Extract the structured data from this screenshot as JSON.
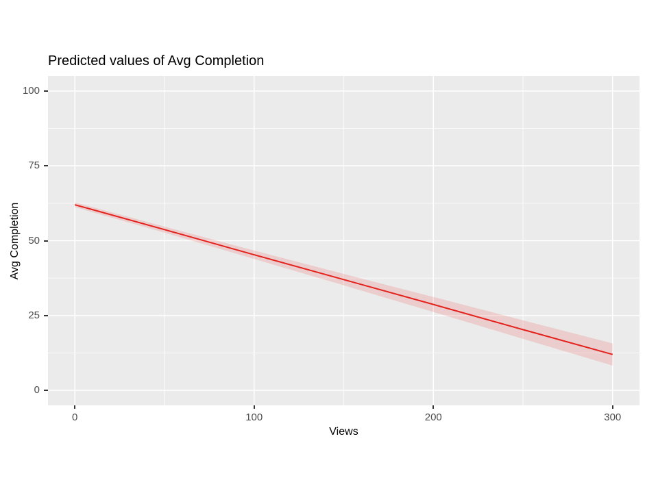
{
  "chart_data": {
    "type": "line",
    "title": "Predicted values of Avg Completion",
    "xlabel": "Views",
    "ylabel": "Avg Completion",
    "xlim": [
      0,
      300
    ],
    "ylim": [
      0,
      100
    ],
    "x_ticks": [
      0,
      100,
      200,
      300
    ],
    "x_minor_ticks": [
      50,
      150,
      250
    ],
    "y_ticks": [
      0,
      25,
      50,
      75,
      100
    ],
    "y_minor_ticks": [
      12.5,
      37.5,
      62.5,
      87.5
    ],
    "grid": "ggplot grey panel with white major and minor gridlines",
    "legend": "none",
    "series": [
      {
        "name": "predicted-avg-completion",
        "x": [
          0,
          50,
          100,
          150,
          200,
          250,
          300
        ],
        "y": [
          62.0,
          53.7,
          45.3,
          37.0,
          28.7,
          20.3,
          12.0
        ],
        "color": "#e4211c"
      }
    ],
    "confidence_band": {
      "x": [
        0,
        50,
        100,
        150,
        200,
        250,
        300
      ],
      "upper": [
        62.8,
        54.7,
        46.7,
        38.9,
        31.2,
        23.4,
        15.7
      ],
      "lower": [
        61.2,
        52.7,
        43.9,
        35.1,
        26.2,
        17.2,
        8.3
      ],
      "fill": "#e4211c",
      "opacity": 0.15
    },
    "colors": {
      "panel_background": "#ebebeb",
      "gridline": "#ffffff",
      "tick_mark": "#333333",
      "tick_label": "#4d4d4d",
      "axis_title": "#000000",
      "title": "#000000",
      "page_background": "#ffffff"
    }
  }
}
